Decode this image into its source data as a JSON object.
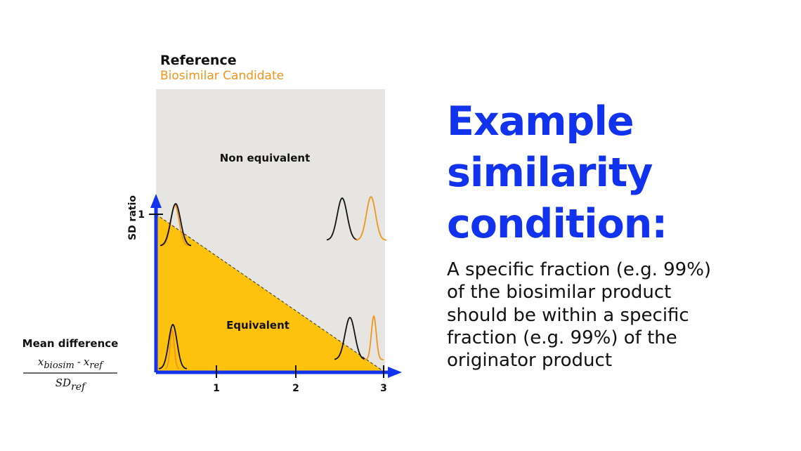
{
  "legend": {
    "reference": "Reference",
    "candidate": "Biosimilar Candidate"
  },
  "regions": {
    "non_equivalent": "Non equivalent",
    "equivalent": "Equivalent"
  },
  "axes": {
    "y_label": "SD ratio",
    "y_ticks": [
      "1"
    ],
    "x_label": "Mean difference",
    "x_ticks": [
      "1",
      "2",
      "3"
    ]
  },
  "formula": {
    "numerator": [
      {
        "base": "x",
        "sub": "biosim"
      },
      {
        "base": "x",
        "sub": "ref"
      }
    ],
    "operator": "-",
    "denominator": {
      "base": "SD",
      "sub": "ref"
    }
  },
  "heading": {
    "lines": [
      "Example",
      "similarity",
      "condition:"
    ]
  },
  "body": {
    "lines": [
      "A specific fraction (e.g. 99%)",
      "of the biosimilar product",
      "should be within a specific",
      "fraction (e.g. 99%) of the",
      "originator product"
    ]
  }
}
